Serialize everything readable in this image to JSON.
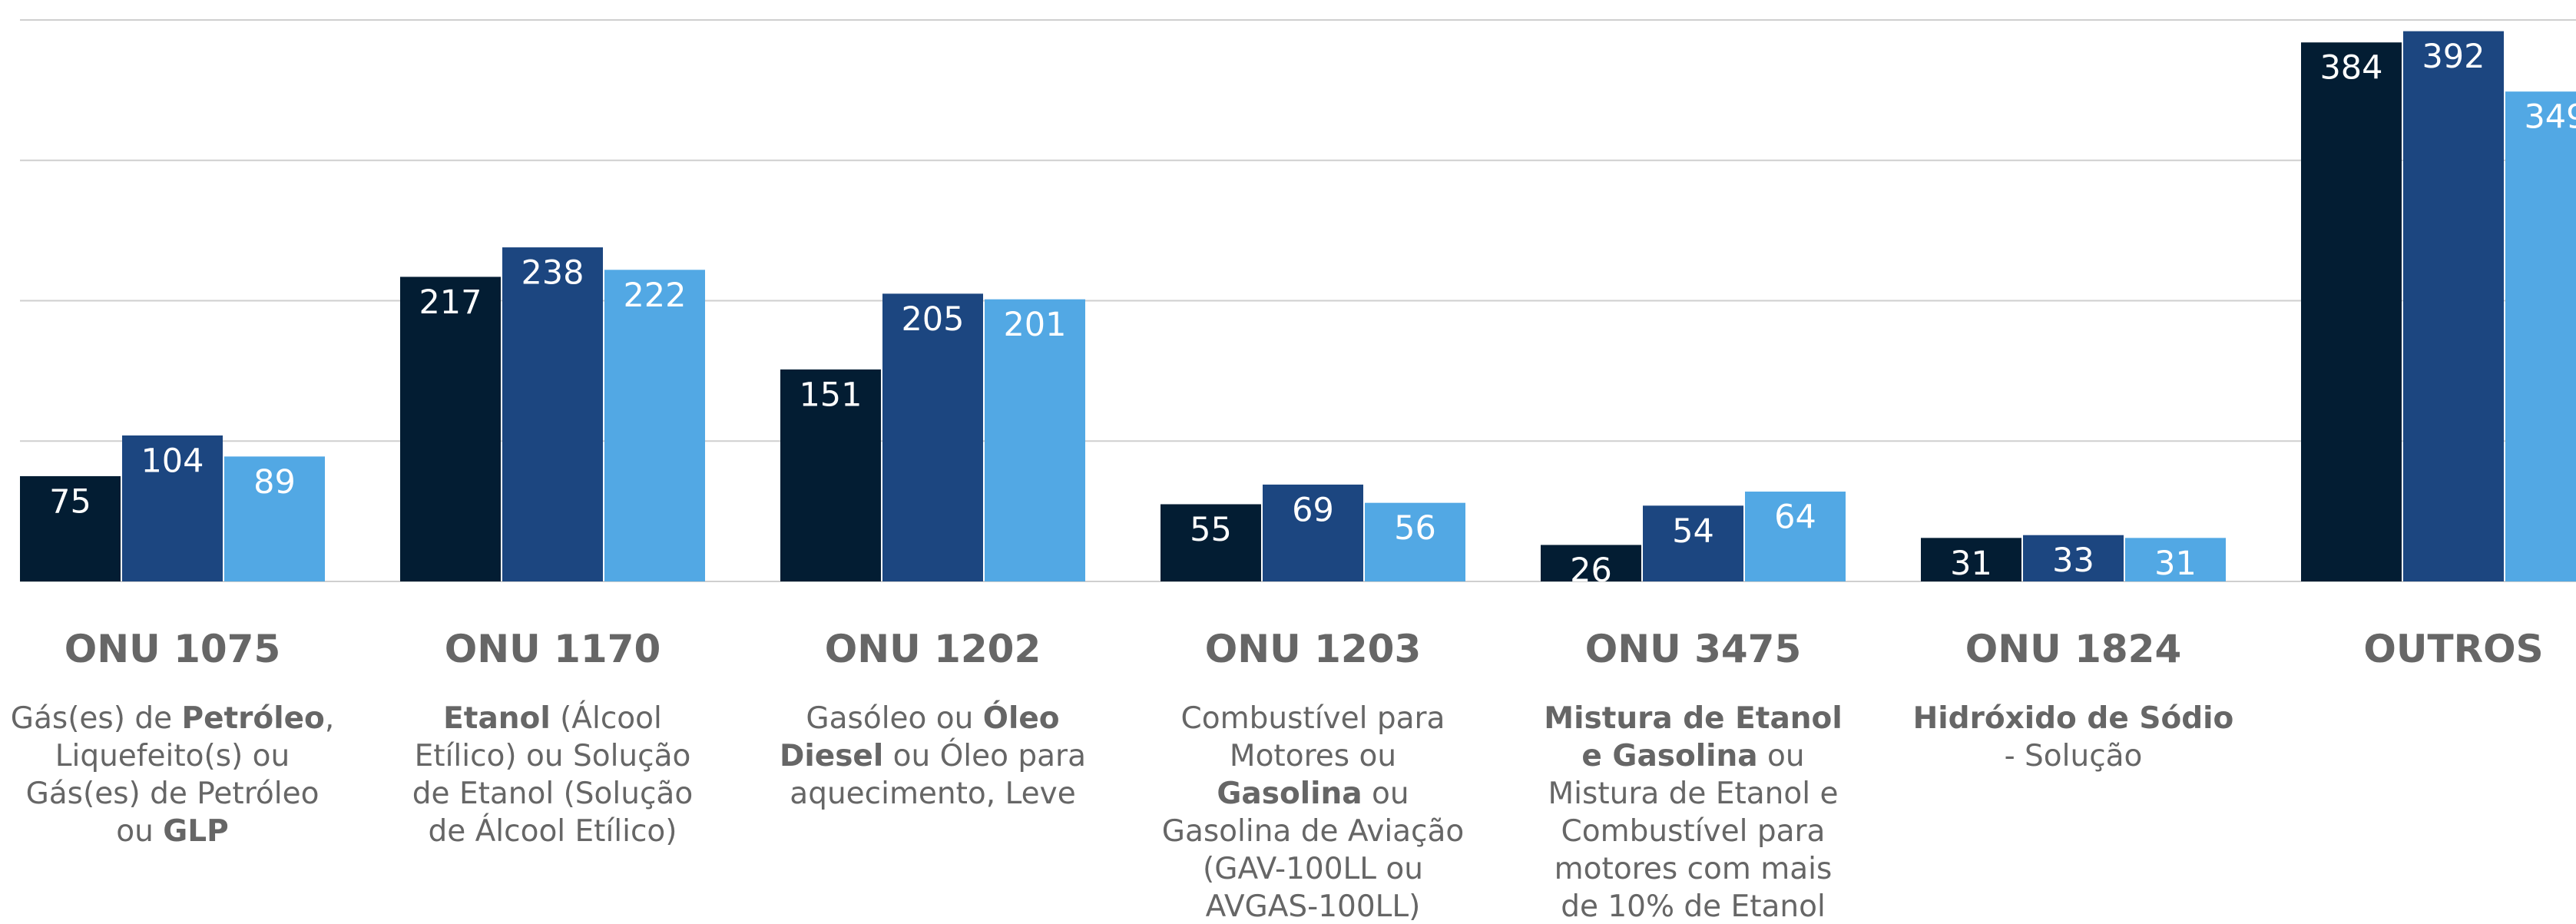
{
  "chart_data": {
    "type": "bar",
    "categories": [
      "ONU 1075",
      "ONU 1170",
      "ONU 1202",
      "ONU 1203",
      "ONU 3475",
      "ONU 1824",
      "OUTROS"
    ],
    "descriptions": [
      [
        [
          {
            "text": "Gás(es) de "
          },
          {
            "text": "Petróleo",
            "bold": true
          },
          {
            "text": ","
          }
        ],
        [
          {
            "text": "Liquefeito(s) ou"
          }
        ],
        [
          {
            "text": "Gás(es) de Petróleo"
          }
        ],
        [
          {
            "text": "ou "
          },
          {
            "text": "GLP",
            "bold": true
          }
        ]
      ],
      [
        [
          {
            "text": "Etanol",
            "bold": true
          },
          {
            "text": " (Álcool"
          }
        ],
        [
          {
            "text": "Etílico) ou Solução"
          }
        ],
        [
          {
            "text": "de Etanol (Solução"
          }
        ],
        [
          {
            "text": "de Álcool Etílico)"
          }
        ]
      ],
      [
        [
          {
            "text": "Gasóleo ou "
          },
          {
            "text": "Óleo",
            "bold": true
          }
        ],
        [
          {
            "text": "Diesel",
            "bold": true
          },
          {
            "text": " ou Óleo para"
          }
        ],
        [
          {
            "text": "aquecimento, Leve"
          }
        ]
      ],
      [
        [
          {
            "text": "Combustível para"
          }
        ],
        [
          {
            "text": "Motores ou"
          }
        ],
        [
          {
            "text": "Gasolina",
            "bold": true
          },
          {
            "text": " ou"
          }
        ],
        [
          {
            "text": "Gasolina de Aviação"
          }
        ],
        [
          {
            "text": "(GAV-100LL ou"
          }
        ],
        [
          {
            "text": "AVGAS-100LL)"
          }
        ]
      ],
      [
        [
          {
            "text": "Mistura de Etanol",
            "bold": true
          }
        ],
        [
          {
            "text": "e Gasolina",
            "bold": true
          },
          {
            "text": " ou"
          }
        ],
        [
          {
            "text": "Mistura de Etanol e"
          }
        ],
        [
          {
            "text": "Combustível para"
          }
        ],
        [
          {
            "text": "motores com mais"
          }
        ],
        [
          {
            "text": "de 10% de Etanol"
          }
        ]
      ],
      [
        [
          {
            "text": "Hidróxido de Sódio",
            "bold": true
          }
        ],
        [
          {
            "text": "- Solução"
          }
        ]
      ],
      []
    ],
    "series": [
      {
        "color": "#031d33",
        "values": [
          75,
          217,
          151,
          55,
          26,
          31,
          384
        ]
      },
      {
        "color": "#1c4680",
        "values": [
          104,
          238,
          205,
          69,
          54,
          33,
          392
        ]
      },
      {
        "color": "#52a8e4",
        "values": [
          89,
          222,
          201,
          56,
          64,
          31,
          349
        ]
      }
    ],
    "ylim": [
      0,
      400
    ],
    "yticks": [
      0,
      100,
      200,
      300,
      400
    ],
    "grid": true
  }
}
